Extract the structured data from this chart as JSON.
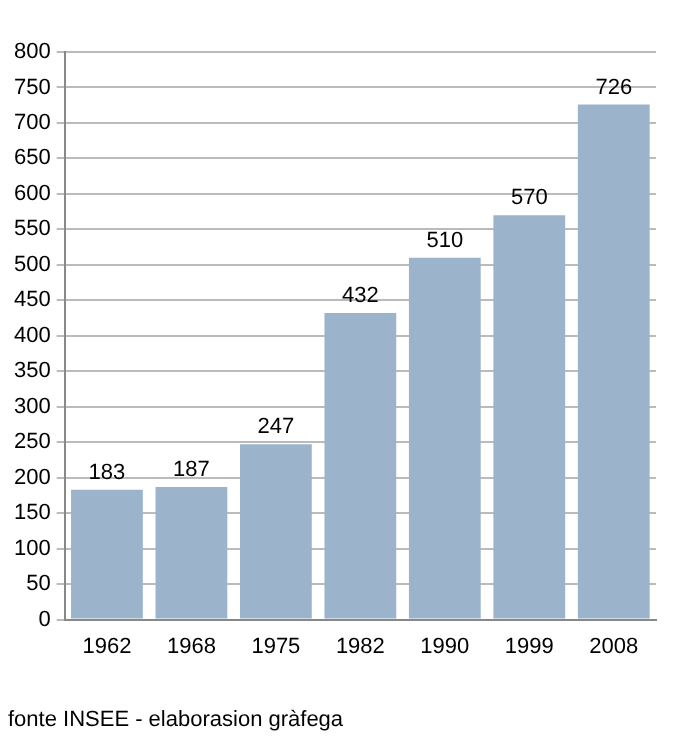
{
  "chart_data": {
    "type": "bar",
    "categories": [
      "1962",
      "1968",
      "1975",
      "1982",
      "1990",
      "1999",
      "2008"
    ],
    "values": [
      183,
      187,
      247,
      432,
      510,
      570,
      726
    ],
    "color": "#9bb4cc",
    "ylim": [
      0,
      800
    ],
    "yticks": [
      0,
      50,
      100,
      150,
      200,
      250,
      300,
      350,
      400,
      450,
      500,
      550,
      600,
      650,
      700,
      750,
      800
    ],
    "grid": "y",
    "data_labels": true,
    "annotations": [
      "fonte INSEE - elaborasion gràfega"
    ]
  }
}
